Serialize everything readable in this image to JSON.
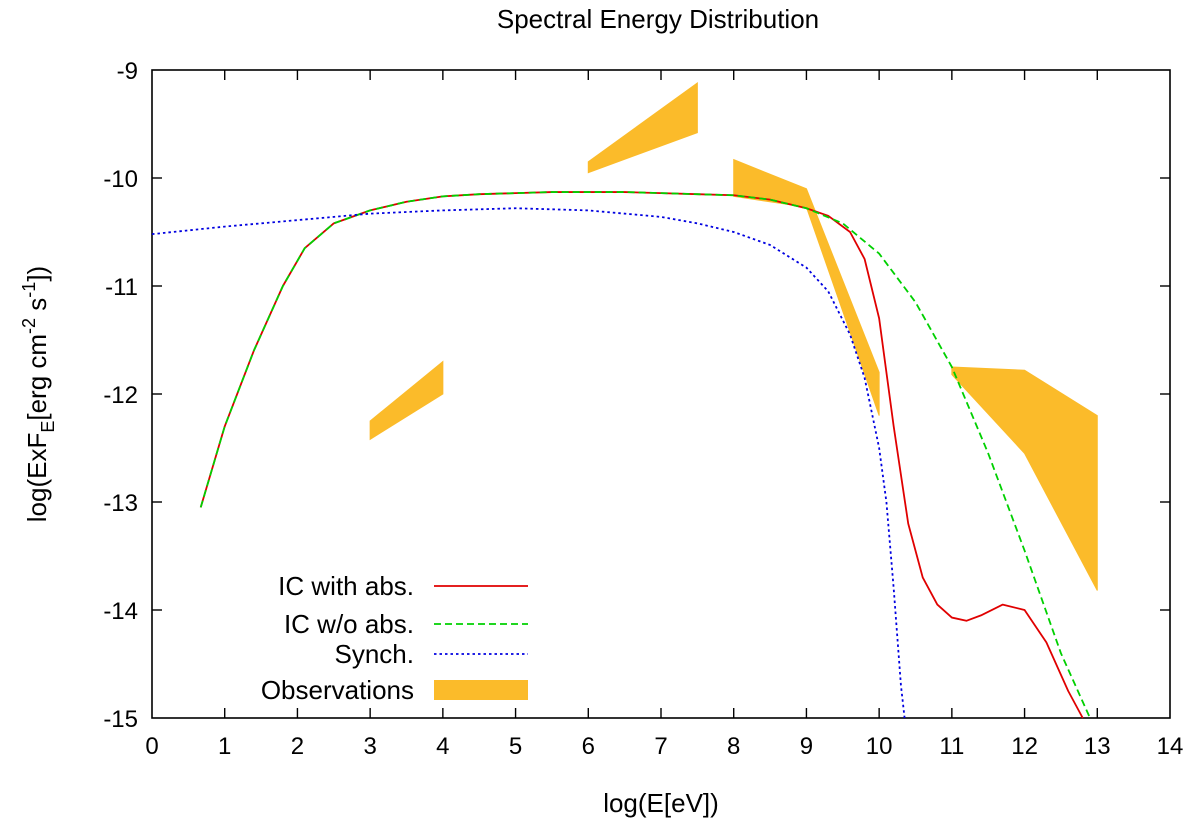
{
  "chart_data": {
    "type": "line",
    "title": "Spectral Energy Distribution",
    "xlabel": "log(E[eV])",
    "ylabel": {
      "parts": [
        "log(ExF",
        "E",
        "[erg cm",
        "-2",
        " s",
        "-1",
        "])"
      ],
      "text": "log(ExF_E[erg cm^-2 s^-1])"
    },
    "xlim": [
      0,
      14
    ],
    "ylim": [
      -15,
      -9
    ],
    "xticks": [
      "0",
      "1",
      "2",
      "3",
      "4",
      "5",
      "6",
      "7",
      "8",
      "9",
      "10",
      "11",
      "12",
      "13",
      "14"
    ],
    "yticks": [
      "-15",
      "-14",
      "-13",
      "-12",
      "-11",
      "-10",
      "-9"
    ],
    "grid": false,
    "legend_position": "bottom-left",
    "series": [
      {
        "name": "IC with abs.",
        "color": "#e00000",
        "style": "solid",
        "x": [
          0.67,
          1.0,
          1.4,
          1.8,
          2.1,
          2.5,
          3.0,
          3.5,
          4.0,
          4.5,
          5.0,
          5.5,
          6.0,
          6.5,
          7.0,
          7.5,
          8.0,
          8.5,
          9.0,
          9.3,
          9.6,
          9.8,
          10.0,
          10.2,
          10.4,
          10.6,
          10.8,
          11.0,
          11.2,
          11.4,
          11.7,
          12.0,
          12.3,
          12.6,
          12.8
        ],
        "y": [
          -13.05,
          -12.3,
          -11.6,
          -11.0,
          -10.65,
          -10.42,
          -10.3,
          -10.22,
          -10.17,
          -10.15,
          -10.14,
          -10.13,
          -10.13,
          -10.13,
          -10.14,
          -10.15,
          -10.16,
          -10.2,
          -10.28,
          -10.35,
          -10.5,
          -10.75,
          -11.3,
          -12.3,
          -13.2,
          -13.7,
          -13.95,
          -14.07,
          -14.1,
          -14.05,
          -13.95,
          -14.0,
          -14.3,
          -14.75,
          -15.0
        ]
      },
      {
        "name": "IC w/o abs.",
        "color": "#00d000",
        "style": "dashed",
        "x": [
          0.67,
          1.0,
          1.4,
          1.8,
          2.1,
          2.5,
          3.0,
          3.5,
          4.0,
          4.5,
          5.0,
          5.5,
          6.0,
          6.5,
          7.0,
          7.5,
          8.0,
          8.5,
          9.0,
          9.5,
          10.0,
          10.5,
          11.0,
          11.5,
          12.0,
          12.5,
          12.9
        ],
        "y": [
          -13.05,
          -12.3,
          -11.6,
          -11.0,
          -10.65,
          -10.42,
          -10.3,
          -10.22,
          -10.17,
          -10.15,
          -10.14,
          -10.13,
          -10.13,
          -10.13,
          -10.14,
          -10.15,
          -10.16,
          -10.2,
          -10.28,
          -10.42,
          -10.7,
          -11.15,
          -11.75,
          -12.55,
          -13.45,
          -14.4,
          -15.0
        ]
      },
      {
        "name": "Synch.",
        "color": "#0000e0",
        "style": "dotted",
        "x": [
          0,
          1,
          2,
          3,
          4,
          5,
          6,
          7,
          7.5,
          8,
          8.5,
          9,
          9.3,
          9.6,
          9.8,
          10.0,
          10.1,
          10.2,
          10.3,
          10.35
        ],
        "y": [
          -10.52,
          -10.45,
          -10.39,
          -10.33,
          -10.3,
          -10.28,
          -10.3,
          -10.36,
          -10.42,
          -10.5,
          -10.62,
          -10.83,
          -11.05,
          -11.45,
          -11.85,
          -12.5,
          -13.0,
          -13.8,
          -14.7,
          -15.0
        ]
      }
    ],
    "observations": {
      "name": "Observations",
      "color": "#fbbb2a",
      "bands": [
        {
          "x": [
            3.0,
            4.0
          ],
          "upper": [
            -12.25,
            -11.7
          ],
          "lower": [
            -12.42,
            -12.0
          ]
        },
        {
          "x": [
            6.0,
            7.5
          ],
          "upper": [
            -9.85,
            -9.12
          ],
          "lower": [
            -9.95,
            -9.58
          ]
        },
        {
          "x": [
            8.0,
            9.0,
            10.0
          ],
          "upper": [
            -9.83,
            -10.1,
            -11.8
          ],
          "lower": [
            -10.17,
            -10.27,
            -12.2
          ]
        },
        {
          "x": [
            11.0,
            12.0,
            13.0
          ],
          "upper": [
            -11.75,
            -11.78,
            -12.2
          ],
          "lower": [
            -11.82,
            -12.55,
            -13.82
          ]
        }
      ]
    },
    "legend": [
      "IC with abs.",
      "IC w/o abs.",
      "Synch.",
      "Observations"
    ]
  }
}
